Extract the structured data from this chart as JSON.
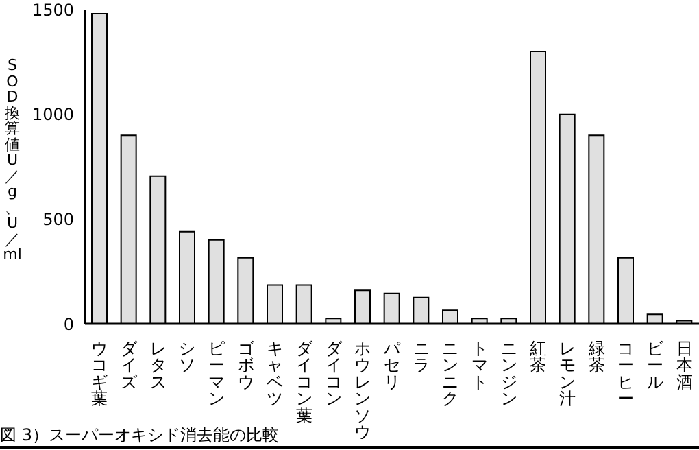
{
  "chart_data": {
    "type": "bar",
    "ylabel": "SOD換算値U／g、U／ml",
    "annotations": [
      "図 3）スーパーオキシド消去能の比較"
    ],
    "categories": [
      "ウコギ葉",
      "ダイズ",
      "レタス",
      "シソ",
      "ピーマン",
      "ゴボウ",
      "キャベツ",
      "ダイコン葉",
      "ダイコン",
      "ホウレンソウ",
      "パセリ",
      "ニラ",
      "ニンニク",
      "トマト",
      "ニンジン",
      "紅茶",
      "レモン汁",
      "緑茶",
      "コーヒー",
      "ビール",
      "日本酒"
    ],
    "values": [
      1480,
      900,
      705,
      440,
      400,
      315,
      185,
      185,
      25,
      160,
      145,
      125,
      65,
      25,
      25,
      1300,
      1000,
      900,
      315,
      45,
      15
    ],
    "color": "#e0e0e0",
    "ylim": [
      0,
      1500
    ],
    "yticks": [
      0,
      500,
      1000,
      1500
    ],
    "grid": false,
    "legend": false
  }
}
